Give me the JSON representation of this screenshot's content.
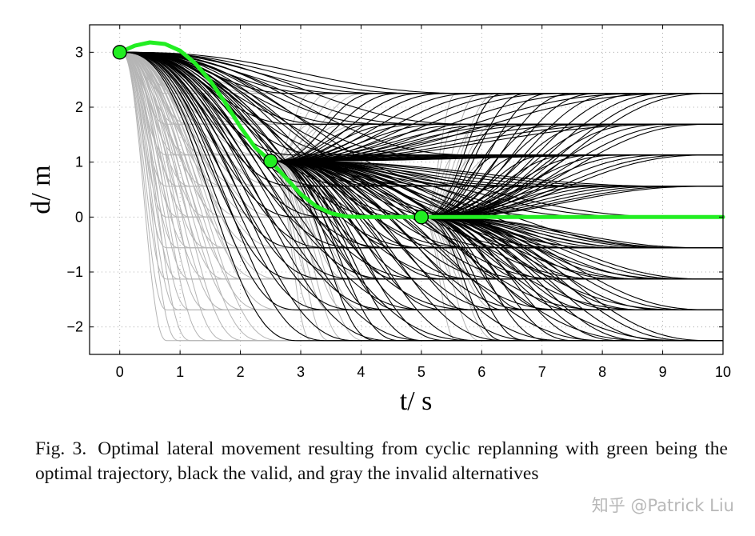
{
  "chart_data": {
    "type": "line",
    "xlabel": "t/ s",
    "ylabel": "d/ m",
    "xlim": [
      -0.5,
      10
    ],
    "ylim": [
      -2.5,
      3.5
    ],
    "xticks": [
      0,
      1,
      2,
      3,
      4,
      5,
      6,
      7,
      8,
      9,
      10
    ],
    "yticks": [
      -2,
      -1,
      0,
      1,
      2,
      3
    ],
    "xtick_labels": [
      "0",
      "1",
      "2",
      "3",
      "4",
      "5",
      "6",
      "7",
      "8",
      "9",
      "10"
    ],
    "ytick_labels": [
      "−2",
      "−1",
      "0",
      "1",
      "2",
      "3"
    ],
    "grid": true,
    "grid_style": "dotted",
    "lateral_offsets": [
      -2.25,
      -1.69,
      -1.13,
      -0.56,
      0,
      0.56,
      1.13,
      1.69,
      2.25
    ],
    "series": [
      {
        "role": "gray invalid alternatives",
        "color": "#b5b5b5",
        "segments": [
          {
            "start": [
              0,
              3
            ],
            "durations": [
              0.8,
              1.0,
              1.2,
              1.5,
              1.8,
              2.1,
              2.4,
              2.7,
              3.0
            ]
          },
          {
            "start": [
              2.5,
              1.02
            ],
            "durations": [
              0.7,
              1.0,
              1.3,
              1.6
            ]
          },
          {
            "start": [
              5,
              0
            ],
            "durations": [
              0.6,
              1.0,
              1.3
            ]
          }
        ]
      },
      {
        "role": "black valid alternatives",
        "color": "#000000",
        "segments": [
          {
            "start": [
              0,
              3
            ],
            "durations": [
              3.0,
              3.5,
              4.0,
              4.6,
              5.2,
              6.0
            ]
          },
          {
            "start": [
              2.5,
              1.02
            ],
            "durations": [
              1.8,
              2.2,
              2.6,
              3.0,
              3.5,
              4.0,
              4.5,
              5.0,
              5.7,
              6.4,
              7.0
            ]
          },
          {
            "start": [
              5,
              0
            ],
            "durations": [
              1.4,
              1.8,
              2.2,
              2.6,
              3.0,
              3.4,
              3.8,
              4.2,
              4.6,
              4.9
            ]
          }
        ]
      },
      {
        "role": "green optimal trajectory",
        "color": "#22ee22",
        "x": [
          0,
          0.25,
          0.5,
          0.75,
          1.0,
          1.25,
          1.5,
          1.75,
          2.0,
          2.25,
          2.5,
          2.75,
          3.0,
          3.25,
          3.5,
          3.75,
          4.0,
          4.5,
          5.0,
          6.0,
          7.0,
          8.0,
          9.0,
          10.0
        ],
        "y": [
          3.0,
          3.12,
          3.18,
          3.15,
          3.03,
          2.8,
          2.48,
          2.08,
          1.64,
          1.26,
          1.02,
          0.72,
          0.42,
          0.2,
          0.07,
          0.01,
          0.0,
          0.0,
          0.0,
          0.0,
          0.0,
          0.0,
          0.0,
          0.0
        ]
      }
    ],
    "replanning_points": [
      {
        "t": 0,
        "d": 3.0
      },
      {
        "t": 2.5,
        "d": 1.02
      },
      {
        "t": 5,
        "d": 0.0
      }
    ]
  },
  "caption": {
    "figure_number": "Fig. 3.",
    "text": "Optimal lateral movement resulting from cyclic replanning with green being the optimal trajectory, black the valid, and gray the invalid alternatives"
  },
  "watermark": "知乎 @Patrick Liu"
}
